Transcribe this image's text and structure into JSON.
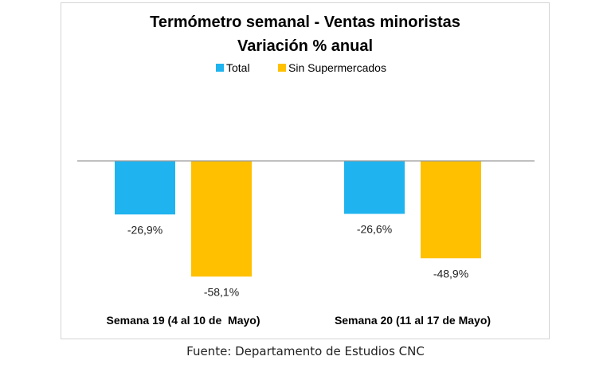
{
  "chart_data": {
    "type": "bar",
    "title": "Termómetro semanal - Ventas minoristas",
    "subtitle": "Variación % anual",
    "categories": [
      "Semana 19 (4 al 10 de  Mayo)",
      "Semana 20 (11 al 17 de Mayo)"
    ],
    "series": [
      {
        "name": "Total",
        "values": [
          -26.9,
          -26.6
        ],
        "labels": [
          "-26,9%",
          "-26,6%"
        ],
        "color": "#1FB4EF"
      },
      {
        "name": "Sin Supermercados",
        "values": [
          -58.1,
          -48.9
        ],
        "labels": [
          "-58,1%",
          "-48,9%"
        ],
        "color": "#FFC000"
      }
    ],
    "ylim": [
      -60,
      0
    ],
    "legend": "top",
    "grid": false
  },
  "source": "Fuente: Departamento de Estudios CNC"
}
